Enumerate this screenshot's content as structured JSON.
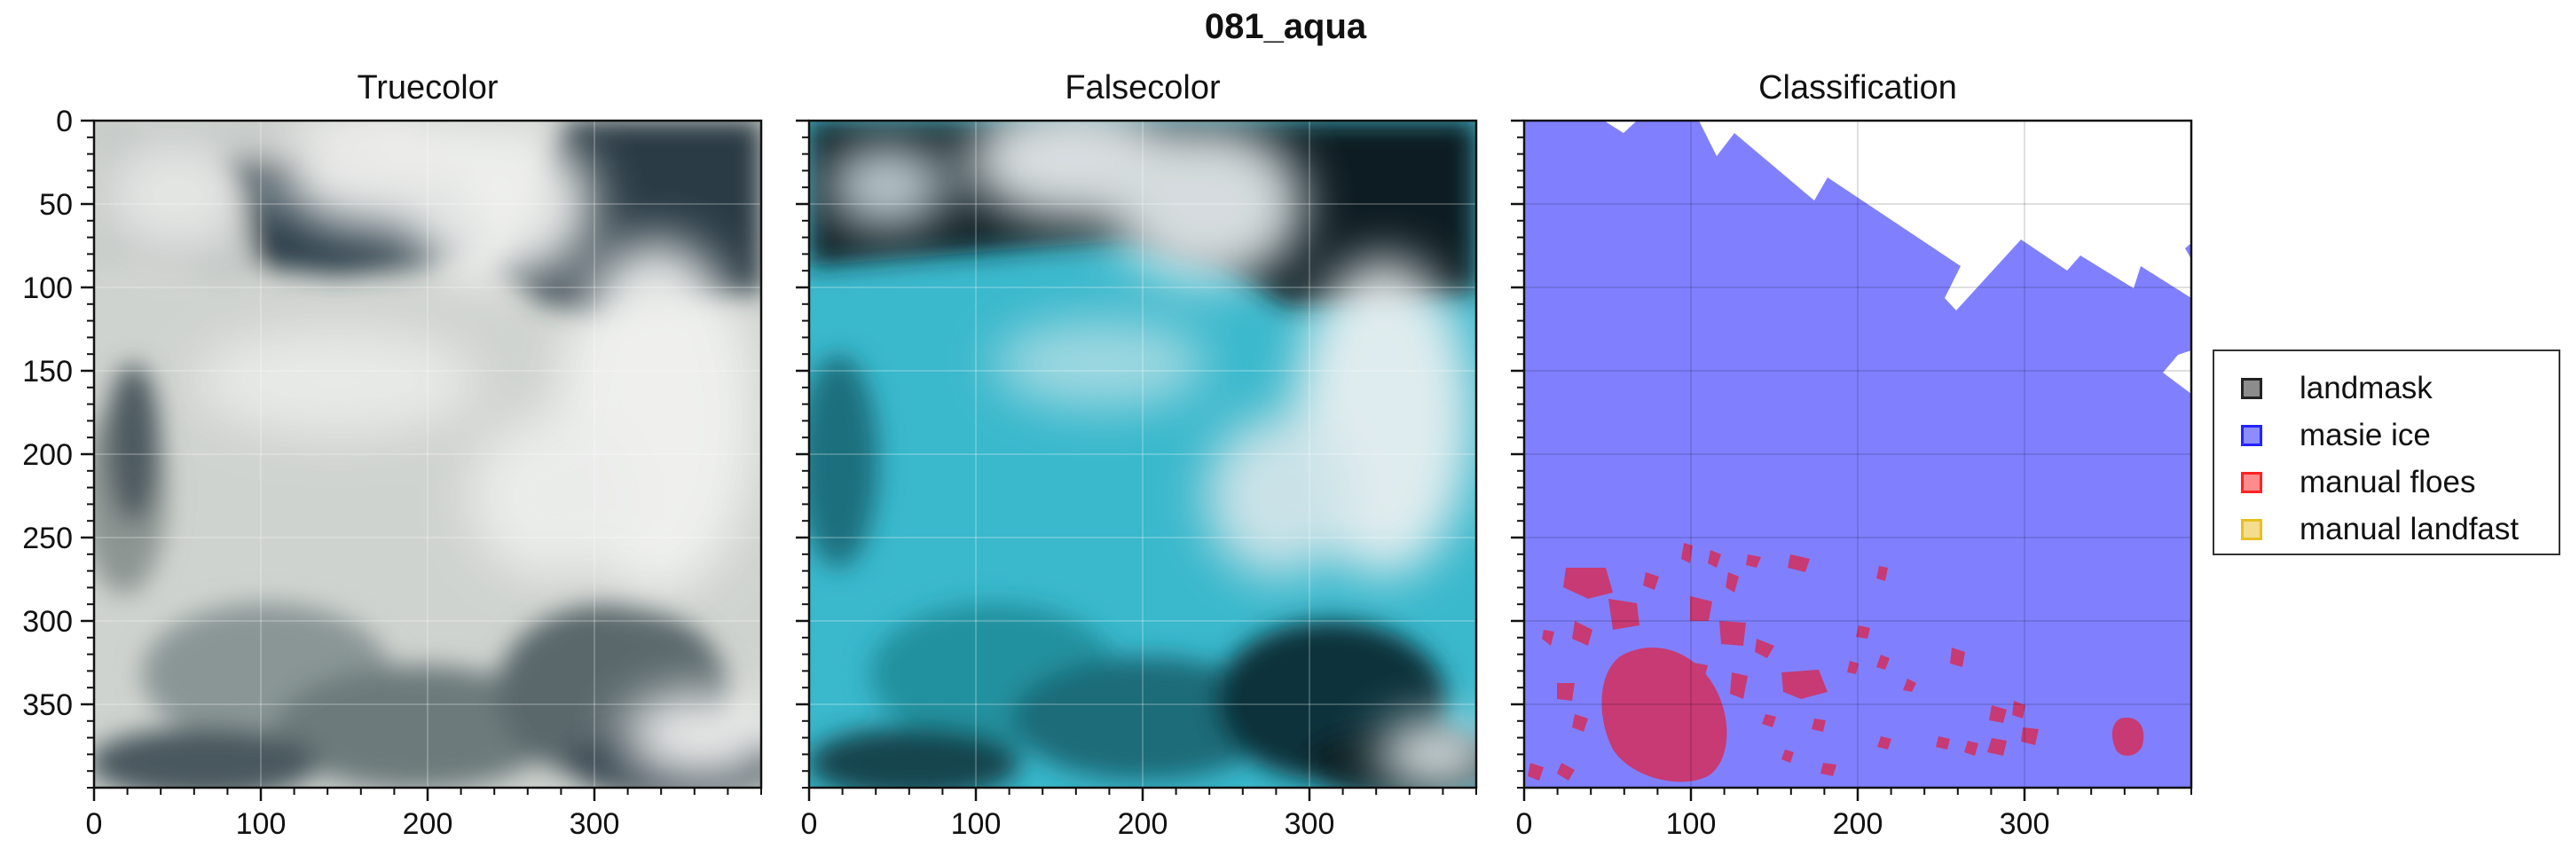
{
  "figure": {
    "suptitle": "081_aqua"
  },
  "chart_data": [
    {
      "type": "image",
      "title": "Truecolor",
      "xticks": [
        0,
        100,
        200,
        300
      ],
      "yticks": [
        0,
        50,
        100,
        150,
        200,
        250,
        300,
        350
      ],
      "xlim": [
        0,
        400
      ],
      "ylim": [
        400,
        0
      ],
      "grid": true,
      "colors": {
        "ice": "#d6d9d4",
        "water": "#2a3a44",
        "cloud": "#ecedeb"
      }
    },
    {
      "type": "image",
      "title": "Falsecolor",
      "xticks": [
        0,
        100,
        200,
        300
      ],
      "yticks": [
        0,
        50,
        100,
        150,
        200,
        250,
        300,
        350
      ],
      "xlim": [
        0,
        400
      ],
      "ylim": [
        400,
        0
      ],
      "grid": true,
      "colors": {
        "ice": "#3fc3d6",
        "water": "#0d1a22",
        "cloud": "#e8eef0"
      }
    },
    {
      "type": "image",
      "title": "Classification",
      "xticks": [
        0,
        100,
        200,
        300
      ],
      "yticks": [
        0,
        50,
        100,
        150,
        200,
        250,
        300,
        350
      ],
      "xlim": [
        0,
        400
      ],
      "ylim": [
        400,
        0
      ],
      "grid": true,
      "legend_position": "right",
      "legend": [
        {
          "label": "landmask",
          "color": "#000000"
        },
        {
          "label": "masie ice",
          "color": "#0000ff"
        },
        {
          "label": "manual floes",
          "color": "#ff0000"
        },
        {
          "label": "manual landfast",
          "color": "#e6b400"
        }
      ],
      "colors": {
        "masie": "#8080ff",
        "floe": "#c73a73"
      }
    }
  ]
}
